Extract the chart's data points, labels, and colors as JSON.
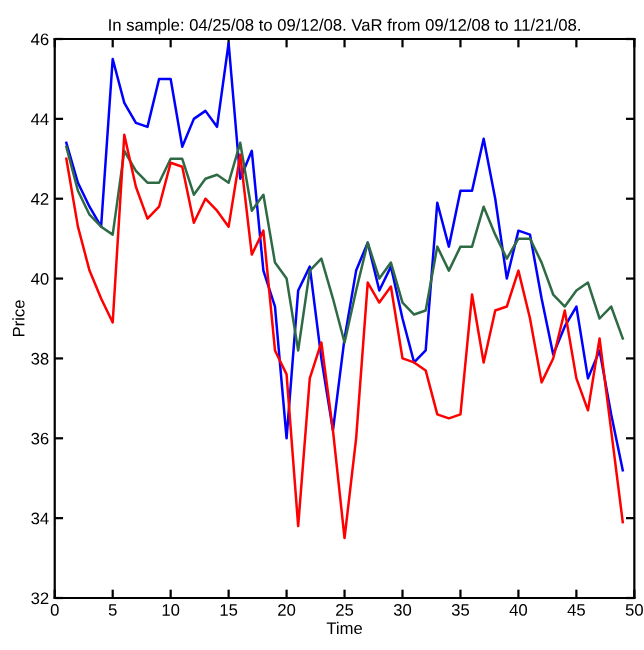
{
  "chart_data": {
    "type": "line",
    "title": "In sample: 04/25/08 to 09/12/08. VaR from 09/12/08 to 11/21/08.",
    "xlabel": "Time",
    "ylabel": "Price",
    "x": [
      1,
      2,
      3,
      4,
      5,
      6,
      7,
      8,
      9,
      10,
      11,
      12,
      13,
      14,
      15,
      16,
      17,
      18,
      19,
      20,
      21,
      22,
      23,
      24,
      25,
      26,
      27,
      28,
      29,
      30,
      31,
      32,
      33,
      34,
      35,
      36,
      37,
      38,
      39,
      40,
      41,
      42,
      43,
      44,
      45,
      46,
      47,
      48,
      49
    ],
    "series": [
      {
        "color": "#0000ff",
        "values": [
          43.4,
          42.4,
          41.8,
          41.3,
          45.5,
          44.4,
          43.9,
          43.8,
          45.0,
          45.0,
          43.3,
          44.0,
          44.2,
          43.8,
          45.9,
          42.5,
          43.2,
          40.2,
          39.3,
          36.0,
          39.7,
          40.3,
          38.0,
          36.2,
          38.5,
          40.2,
          40.9,
          39.7,
          40.3,
          39.0,
          37.9,
          38.2,
          41.9,
          40.8,
          42.2,
          42.2,
          43.5,
          42.0,
          40.0,
          41.2,
          41.1,
          39.5,
          38.1,
          38.8,
          39.3,
          37.5,
          38.2,
          36.6,
          35.2
        ]
      },
      {
        "color": "#2e6b45",
        "values": [
          43.3,
          42.2,
          41.6,
          41.3,
          41.1,
          43.2,
          42.7,
          42.4,
          42.4,
          43.0,
          43.0,
          42.1,
          42.5,
          42.6,
          42.4,
          43.4,
          41.7,
          42.1,
          40.4,
          40.0,
          38.2,
          40.2,
          40.5,
          39.5,
          38.4,
          39.7,
          40.9,
          40.0,
          40.4,
          39.4,
          39.1,
          39.2,
          40.8,
          40.2,
          40.8,
          40.8,
          41.8,
          41.1,
          40.5,
          41.0,
          41.0,
          40.4,
          39.6,
          39.3,
          39.7,
          39.9,
          39.0,
          39.3,
          38.5
        ]
      },
      {
        "color": "#ff0000",
        "values": [
          43.0,
          41.3,
          40.2,
          39.5,
          38.9,
          43.6,
          42.3,
          41.5,
          41.8,
          42.9,
          42.8,
          41.4,
          42.0,
          41.7,
          41.3,
          43.1,
          40.6,
          41.2,
          38.2,
          37.6,
          33.8,
          37.5,
          38.4,
          36.2,
          33.5,
          36.0,
          39.9,
          39.4,
          39.8,
          38.0,
          37.9,
          37.7,
          36.6,
          36.5,
          36.6,
          39.6,
          37.9,
          39.2,
          39.3,
          40.2,
          39.0,
          37.4,
          38.0,
          39.2,
          37.5,
          36.7,
          38.5,
          36.2,
          33.9
        ]
      }
    ],
    "xlim": [
      0,
      50
    ],
    "ylim": [
      32,
      46
    ],
    "xticks": [
      0,
      5,
      10,
      15,
      20,
      25,
      30,
      35,
      40,
      45,
      50
    ],
    "yticks": [
      32,
      34,
      36,
      38,
      40,
      42,
      44,
      46
    ],
    "grid": false,
    "legend": false,
    "marker": "none",
    "line_style": "solid"
  }
}
